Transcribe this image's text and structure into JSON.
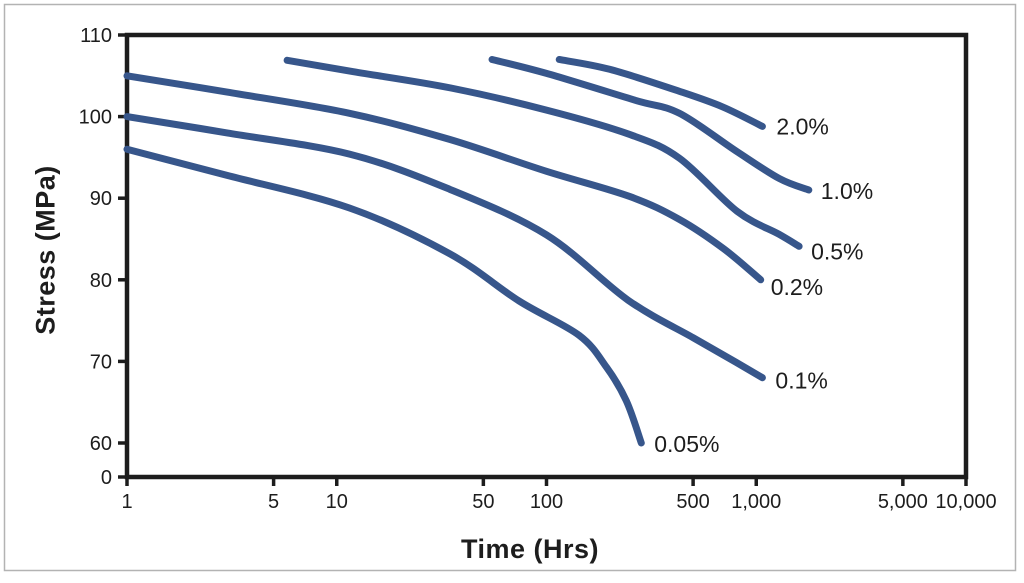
{
  "figure": {
    "background": "#ffffff",
    "border_color": "#b3b3b3"
  },
  "chart_data": {
    "type": "line",
    "title": "",
    "xlabel": "Time (Hrs)",
    "ylabel": "Stress (MPa)",
    "x_scale": "log",
    "xlim": [
      1,
      10000
    ],
    "ylim": [
      60,
      110
    ],
    "y_axis_break_to_zero": true,
    "grid": false,
    "legend_position": "end-of-line-labels",
    "line_color": "#37568B",
    "axis_color": "#1d1d1d",
    "text_color": "#1d1d1d",
    "x_ticks": [
      {
        "value": 1,
        "label": "1"
      },
      {
        "value": 5,
        "label": "5"
      },
      {
        "value": 10,
        "label": "10"
      },
      {
        "value": 50,
        "label": "50"
      },
      {
        "value": 100,
        "label": "100"
      },
      {
        "value": 500,
        "label": "500"
      },
      {
        "value": 1000,
        "label": "1,000"
      },
      {
        "value": 5000,
        "label": "5,000"
      },
      {
        "value": 10000,
        "label": "10,000"
      }
    ],
    "y_ticks": [
      {
        "value": 110,
        "label": "110"
      },
      {
        "value": 100,
        "label": "100"
      },
      {
        "value": 90,
        "label": "90"
      },
      {
        "value": 80,
        "label": "80"
      },
      {
        "value": 70,
        "label": "70"
      },
      {
        "value": 60,
        "label": "60"
      },
      {
        "value": 0,
        "label": "0"
      }
    ],
    "series": [
      {
        "name": "strain-0.05pct",
        "label": "0.05%",
        "label_offset": [
          13,
          9
        ],
        "points": [
          [
            1,
            96
          ],
          [
            3,
            92.8
          ],
          [
            11.5,
            88.8
          ],
          [
            34.5,
            83.2
          ],
          [
            74,
            77.4
          ],
          [
            143,
            73.2
          ],
          [
            193,
            69.3
          ],
          [
            240,
            65.2
          ],
          [
            283,
            60
          ]
        ]
      },
      {
        "name": "strain-0.1pct",
        "label": "0.1%",
        "label_offset": [
          13,
          11
        ],
        "points": [
          [
            1,
            100
          ],
          [
            3,
            98
          ],
          [
            11.5,
            95.4
          ],
          [
            34.5,
            91.1
          ],
          [
            100,
            85.5
          ],
          [
            245,
            77.5
          ],
          [
            500,
            72.9
          ],
          [
            800,
            69.9
          ],
          [
            1070,
            68
          ]
        ]
      },
      {
        "name": "strain-0.2pct",
        "label": "0.2%",
        "label_offset": [
          10,
          15
        ],
        "points": [
          [
            1,
            105
          ],
          [
            3,
            103
          ],
          [
            11.5,
            100.4
          ],
          [
            34.5,
            97.2
          ],
          [
            100,
            93.3
          ],
          [
            250,
            90.2
          ],
          [
            430,
            87.4
          ],
          [
            700,
            83.8
          ],
          [
            1050,
            80
          ]
        ]
      },
      {
        "name": "strain-0.5pct",
        "label": "0.5%",
        "label_offset": [
          12,
          13
        ],
        "points": [
          [
            5.8,
            106.9
          ],
          [
            12,
            105.5
          ],
          [
            35,
            103.5
          ],
          [
            100,
            100.8
          ],
          [
            250,
            97.8
          ],
          [
            430,
            94.9
          ],
          [
            810,
            88.4
          ],
          [
            1280,
            85.6
          ],
          [
            1600,
            84.1
          ]
        ]
      },
      {
        "name": "strain-1.0pct",
        "label": "1.0%",
        "label_offset": [
          12,
          9
        ],
        "points": [
          [
            55,
            107
          ],
          [
            100,
            105.3
          ],
          [
            265,
            102
          ],
          [
            430,
            100.4
          ],
          [
            810,
            95.7
          ],
          [
            1290,
            92.4
          ],
          [
            1780,
            91
          ]
        ]
      },
      {
        "name": "strain-2.0pct",
        "label": "2.0%",
        "label_offset": [
          14,
          8
        ],
        "points": [
          [
            115,
            107
          ],
          [
            200,
            105.8
          ],
          [
            430,
            103.1
          ],
          [
            690,
            101.2
          ],
          [
            1070,
            98.8
          ]
        ]
      }
    ]
  }
}
